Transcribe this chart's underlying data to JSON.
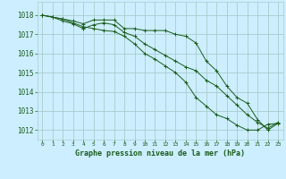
{
  "title": "Graphe pression niveau de la mer (hPa)",
  "background_color": "#cceeff",
  "grid_color": "#aacccc",
  "line_color": "#1a5c1a",
  "xlim": [
    -0.5,
    23.5
  ],
  "ylim": [
    1011.5,
    1018.7
  ],
  "yticks": [
    1012,
    1013,
    1014,
    1015,
    1016,
    1017,
    1018
  ],
  "xticks": [
    0,
    1,
    2,
    3,
    4,
    5,
    6,
    7,
    8,
    9,
    10,
    11,
    12,
    13,
    14,
    15,
    16,
    17,
    18,
    19,
    20,
    21,
    22,
    23
  ],
  "series1_x": [
    0,
    1,
    2,
    3,
    4,
    5,
    6,
    7,
    8,
    9,
    10,
    11,
    12,
    13,
    14,
    15,
    16,
    17,
    18,
    19,
    20,
    21,
    22,
    23
  ],
  "series1_y": [
    1018.0,
    1017.9,
    1017.8,
    1017.7,
    1017.55,
    1017.75,
    1017.75,
    1017.75,
    1017.3,
    1017.3,
    1017.2,
    1017.2,
    1017.2,
    1017.0,
    1016.9,
    1016.55,
    1015.6,
    1015.1,
    1014.3,
    1013.7,
    1013.4,
    1012.55,
    1012.0,
    1012.35
  ],
  "series2_x": [
    0,
    1,
    2,
    3,
    4,
    5,
    6,
    7,
    8,
    9,
    10,
    11,
    12,
    13,
    14,
    15,
    16,
    17,
    18,
    19,
    20,
    21,
    22,
    23
  ],
  "series2_y": [
    1018.0,
    1017.9,
    1017.7,
    1017.55,
    1017.3,
    1017.5,
    1017.6,
    1017.5,
    1017.1,
    1016.9,
    1016.5,
    1016.2,
    1015.9,
    1015.6,
    1015.3,
    1015.1,
    1014.6,
    1014.3,
    1013.8,
    1013.3,
    1012.8,
    1012.4,
    1012.1,
    1012.4
  ],
  "series3_x": [
    0,
    1,
    2,
    3,
    4,
    5,
    6,
    7,
    8,
    9,
    10,
    11,
    12,
    13,
    14,
    15,
    16,
    17,
    18,
    19,
    20,
    21,
    22,
    23
  ],
  "series3_y": [
    1018.0,
    1017.9,
    1017.8,
    1017.6,
    1017.4,
    1017.3,
    1017.2,
    1017.15,
    1016.9,
    1016.5,
    1016.0,
    1015.7,
    1015.35,
    1015.0,
    1014.5,
    1013.7,
    1013.25,
    1012.8,
    1012.6,
    1012.25,
    1012.0,
    1012.0,
    1012.3,
    1012.35
  ],
  "ytick_fontsize": 5.5,
  "xtick_fontsize": 4.5,
  "title_fontsize": 6.0,
  "linewidth": 0.7,
  "markersize": 2.5
}
